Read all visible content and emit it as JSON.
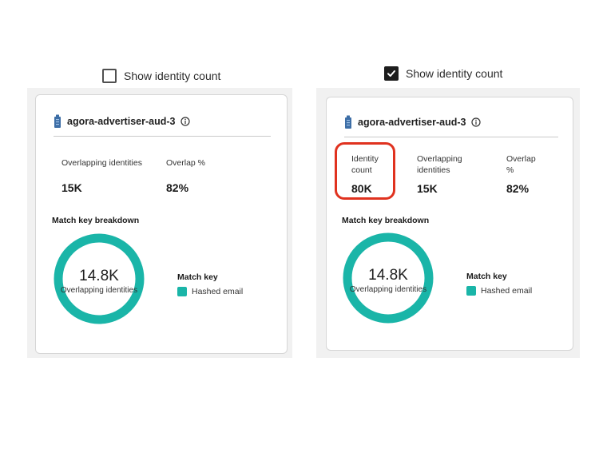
{
  "colors": {
    "accent_teal": "#1ab5a8",
    "highlight_red": "#e0321f",
    "audience_icon_blue": "#3d6ea6"
  },
  "left": {
    "toggle": {
      "label": "Show identity count",
      "checked": false
    },
    "card": {
      "audience_name": "agora-advertiser-aud-3",
      "stats": [
        {
          "label": "Overlapping identities",
          "value": "15K"
        },
        {
          "label": "Overlap %",
          "value": "82%"
        }
      ],
      "breakdown_title": "Match key breakdown",
      "donut": {
        "value": "14.8K",
        "caption": "Overlapping identities",
        "fraction": 1.0
      },
      "legend": {
        "title": "Match key",
        "items": [
          {
            "label": "Hashed email"
          }
        ]
      }
    }
  },
  "right": {
    "toggle": {
      "label": "Show identity count",
      "checked": true
    },
    "card": {
      "audience_name": "agora-advertiser-aud-3",
      "stats": [
        {
          "label_line1": "Identity",
          "label_line2": "count",
          "value": "80K"
        },
        {
          "label_line1": "Overlapping",
          "label_line2": "identities",
          "value": "15K"
        },
        {
          "label_line1": "Overlap",
          "label_line2": "%",
          "value": "82%"
        }
      ],
      "breakdown_title": "Match key breakdown",
      "donut": {
        "value": "14.8K",
        "caption": "Overlapping identities",
        "fraction": 1.0
      },
      "legend": {
        "title": "Match key",
        "items": [
          {
            "label": "Hashed email"
          }
        ]
      }
    }
  }
}
